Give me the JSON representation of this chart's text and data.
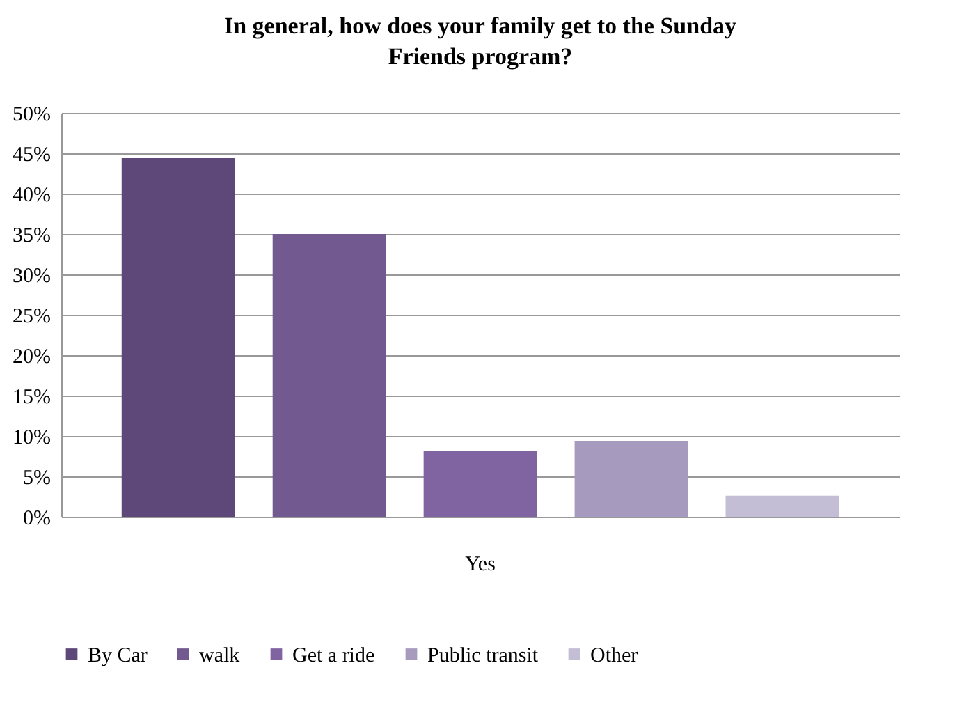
{
  "chart_data": {
    "type": "bar",
    "title": "In general, how does your family get to the Sunday Friends program?",
    "categories": [
      "Yes"
    ],
    "series": [
      {
        "name": "By Car",
        "color": "#5e4779",
        "values": [
          44.4
        ]
      },
      {
        "name": "walk",
        "color": "#725a91",
        "values": [
          35.0
        ]
      },
      {
        "name": "Get a ride",
        "color": "#8064a2",
        "values": [
          8.2
        ]
      },
      {
        "name": "Public transit",
        "color": "#a69abf",
        "values": [
          9.4
        ]
      },
      {
        "name": "Other",
        "color": "#c4bdd6",
        "values": [
          2.6
        ]
      }
    ],
    "ylim": [
      0,
      50
    ],
    "yticks": [
      {
        "value": 0,
        "label": "0%"
      },
      {
        "value": 5,
        "label": "5%"
      },
      {
        "value": 10,
        "label": "10%"
      },
      {
        "value": 15,
        "label": "15%"
      },
      {
        "value": 20,
        "label": "20%"
      },
      {
        "value": 25,
        "label": "25%"
      },
      {
        "value": 30,
        "label": "30%"
      },
      {
        "value": 35,
        "label": "35%"
      },
      {
        "value": 40,
        "label": "40%"
      },
      {
        "value": 45,
        "label": "45%"
      },
      {
        "value": 50,
        "label": "50%"
      }
    ],
    "grid": "y",
    "legend": "bottom"
  }
}
